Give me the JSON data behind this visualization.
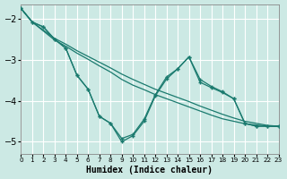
{
  "background_color": "#cce9e4",
  "grid_color": "#b0d8d2",
  "line_color": "#1a7a6e",
  "xlabel": "Humidex (Indice chaleur)",
  "xlim": [
    0,
    23
  ],
  "ylim": [
    -5.3,
    -1.65
  ],
  "xticks": [
    0,
    1,
    2,
    3,
    4,
    5,
    6,
    7,
    8,
    9,
    10,
    11,
    12,
    13,
    14,
    15,
    16,
    17,
    18,
    19,
    20,
    21,
    22,
    23
  ],
  "yticks": [
    -5,
    -4,
    -3,
    -2
  ],
  "line1_x": [
    0,
    1,
    2,
    3,
    4,
    5,
    6,
    7,
    8,
    9,
    10,
    11,
    12,
    13,
    14,
    15,
    16,
    17,
    18,
    19,
    20,
    21,
    22,
    23
  ],
  "line1_y": [
    -1.75,
    -2.08,
    -2.28,
    -2.48,
    -2.62,
    -2.78,
    -2.92,
    -3.06,
    -3.2,
    -3.35,
    -3.48,
    -3.6,
    -3.72,
    -3.82,
    -3.92,
    -4.02,
    -4.13,
    -4.23,
    -4.33,
    -4.42,
    -4.5,
    -4.55,
    -4.6,
    -4.62
  ],
  "line2_x": [
    0,
    1,
    2,
    3,
    4,
    5,
    6,
    7,
    8,
    9,
    10,
    11,
    12,
    13,
    14,
    15,
    16,
    17,
    18,
    19,
    20,
    21,
    22,
    23
  ],
  "line2_y": [
    -1.75,
    -2.08,
    -2.3,
    -2.52,
    -2.67,
    -2.84,
    -2.99,
    -3.15,
    -3.3,
    -3.48,
    -3.62,
    -3.73,
    -3.85,
    -3.95,
    -4.05,
    -4.15,
    -4.25,
    -4.35,
    -4.44,
    -4.5,
    -4.56,
    -4.59,
    -4.62,
    -4.63
  ],
  "line3_x": [
    0,
    1,
    2,
    3,
    4,
    5,
    6,
    7,
    8,
    9,
    10,
    11,
    12,
    13,
    14,
    15,
    16,
    17,
    18,
    19,
    20,
    21,
    22,
    23
  ],
  "line3_y": [
    -1.75,
    -2.08,
    -2.2,
    -2.5,
    -2.72,
    -3.38,
    -3.72,
    -4.38,
    -4.55,
    -5.0,
    -4.85,
    -4.5,
    -3.88,
    -3.47,
    -3.22,
    -2.93,
    -3.48,
    -3.65,
    -3.78,
    -3.95,
    -4.55,
    -4.62,
    -4.62,
    -4.62
  ],
  "line4_x": [
    0,
    1,
    2,
    3,
    4,
    5,
    6,
    7,
    8,
    9,
    10,
    11,
    12,
    13,
    14,
    15,
    16,
    17,
    18,
    19,
    20,
    21,
    22,
    23
  ],
  "line4_y": [
    -1.75,
    -2.08,
    -2.2,
    -2.5,
    -2.72,
    -3.38,
    -3.72,
    -4.38,
    -4.55,
    -4.92,
    -4.82,
    -4.45,
    -3.85,
    -3.42,
    -3.22,
    -2.93,
    -3.55,
    -3.68,
    -3.8,
    -3.95,
    -4.55,
    -4.62,
    -4.62,
    -4.62
  ]
}
